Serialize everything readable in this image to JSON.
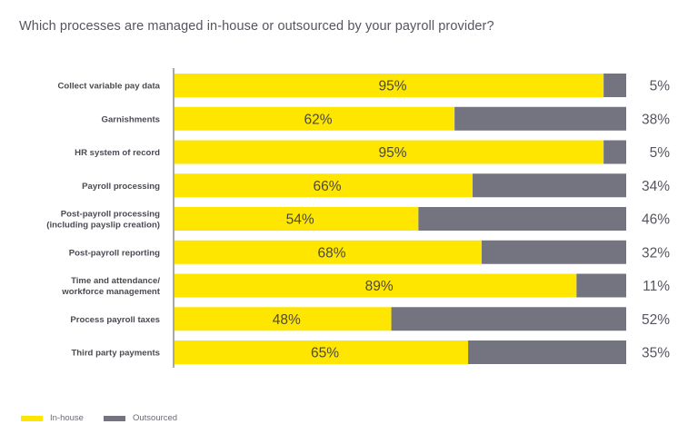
{
  "chart_data": {
    "type": "bar",
    "orientation": "horizontal",
    "stacked": true,
    "title": "Which processes are managed in-house or outsourced by your payroll provider?",
    "xlabel": "",
    "ylabel": "",
    "xlim": [
      0,
      100
    ],
    "grid": false,
    "legend_position": "bottom-left",
    "categories": [
      [
        "Collect variable pay data"
      ],
      [
        "Garnishments"
      ],
      [
        "HR system of record"
      ],
      [
        "Payroll processing"
      ],
      [
        "Post-payroll processing",
        "(including payslip creation)"
      ],
      [
        "Post-payroll reporting"
      ],
      [
        "Time and attendance/",
        "workforce management"
      ],
      [
        "Process payroll taxes"
      ],
      [
        "Third party payments"
      ]
    ],
    "series": [
      {
        "name": "In-house",
        "color": "#ffe600",
        "values": [
          95,
          62,
          95,
          66,
          54,
          68,
          89,
          48,
          65
        ]
      },
      {
        "name": "Outsourced",
        "color": "#747480",
        "values": [
          5,
          38,
          5,
          34,
          46,
          32,
          11,
          52,
          35
        ]
      }
    ],
    "value_suffix": "%"
  }
}
